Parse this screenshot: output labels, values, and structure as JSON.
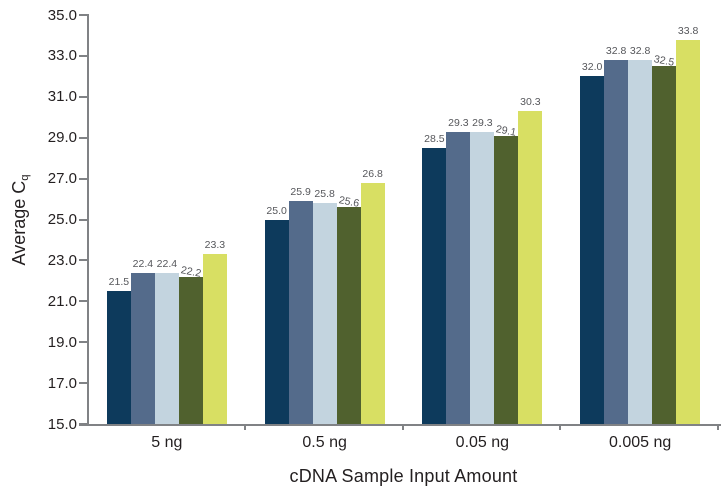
{
  "chart_data": {
    "type": "bar",
    "title": "",
    "xlabel": "cDNA Sample Input Amount",
    "ylabel": "Average Cq",
    "ylabel_parts": {
      "main": "Average C",
      "sub": "q"
    },
    "categories": [
      "5 ng",
      "0.5 ng",
      "0.05 ng",
      "0.005 ng"
    ],
    "series": [
      {
        "color": "#0d3a5c",
        "values": [
          21.5,
          25.0,
          28.5,
          32.0
        ]
      },
      {
        "color": "#546b8b",
        "values": [
          22.4,
          25.9,
          29.3,
          32.8
        ]
      },
      {
        "color": "#c3d4df",
        "values": [
          22.4,
          25.8,
          29.3,
          32.8
        ]
      },
      {
        "color": "#50612e",
        "values": [
          22.2,
          25.6,
          29.1,
          32.5
        ]
      },
      {
        "color": "#d8df63",
        "values": [
          23.3,
          26.8,
          30.3,
          33.8
        ]
      }
    ],
    "ylim": [
      15.0,
      35.0
    ],
    "ytick_step": 2.0,
    "yticks": [
      "35.0",
      "33.0",
      "31.0",
      "29.0",
      "27.0",
      "25.0",
      "23.0",
      "21.0",
      "19.0",
      "17.0",
      "15.0"
    ],
    "value_label_format": "one_decimal",
    "grid": false,
    "legend": "none",
    "axis_color": "#808285",
    "value_label_color": "#56575b",
    "text_color": "#231f20"
  }
}
